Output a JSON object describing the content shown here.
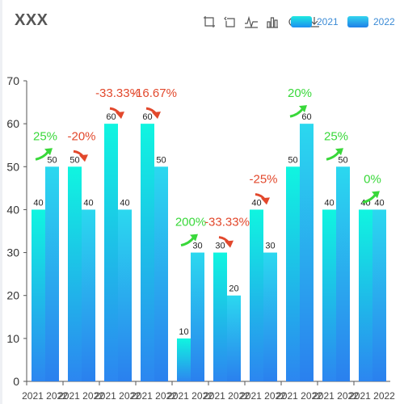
{
  "title": "XXX",
  "toolbar": {
    "icons": [
      "data-zoom-icon",
      "restore-zoom-icon",
      "line-chart-icon",
      "bar-chart-icon",
      "refresh-icon",
      "download-icon"
    ]
  },
  "legend": [
    {
      "name": "2021",
      "color_top": "#1ee8e0",
      "color_bottom": "#1c8ff0"
    },
    {
      "name": "2022",
      "color_top": "#33d4ee",
      "color_bottom": "#1f7fe8"
    }
  ],
  "colors": {
    "bar_a_top": "#10f5e0",
    "bar_a_bottom": "#2c86f0",
    "bar_b_top": "#2bd8ef",
    "bar_b_bottom": "#2a80ee",
    "increase": "#39d83a",
    "decrease": "#e2482c"
  },
  "chart_data": {
    "type": "bar",
    "title": "XXX",
    "categories": [
      "2021 2022",
      "2021 2022",
      "2021 2022",
      "2021 2022",
      "2021 2022",
      "2021 2022",
      "2021 2022",
      "2021 2022",
      "2021 2022",
      "2021 2022"
    ],
    "series": [
      {
        "name": "2021",
        "values": [
          40,
          50,
          60,
          60,
          10,
          30,
          40,
          50,
          40,
          40
        ]
      },
      {
        "name": "2022",
        "values": [
          50,
          40,
          40,
          50,
          30,
          20,
          30,
          60,
          50,
          40
        ]
      }
    ],
    "ylim": [
      0,
      70
    ],
    "yticks": [
      0,
      10,
      20,
      30,
      40,
      50,
      60,
      70
    ],
    "xlabel": "",
    "ylabel": "",
    "grid": false,
    "legend_position": "top-right",
    "annotations": [
      "25%",
      "-20%",
      "-33.33%",
      "-16.67%",
      "200%",
      "-33.33%",
      "-25%",
      "20%",
      "25%",
      "0%"
    ]
  }
}
